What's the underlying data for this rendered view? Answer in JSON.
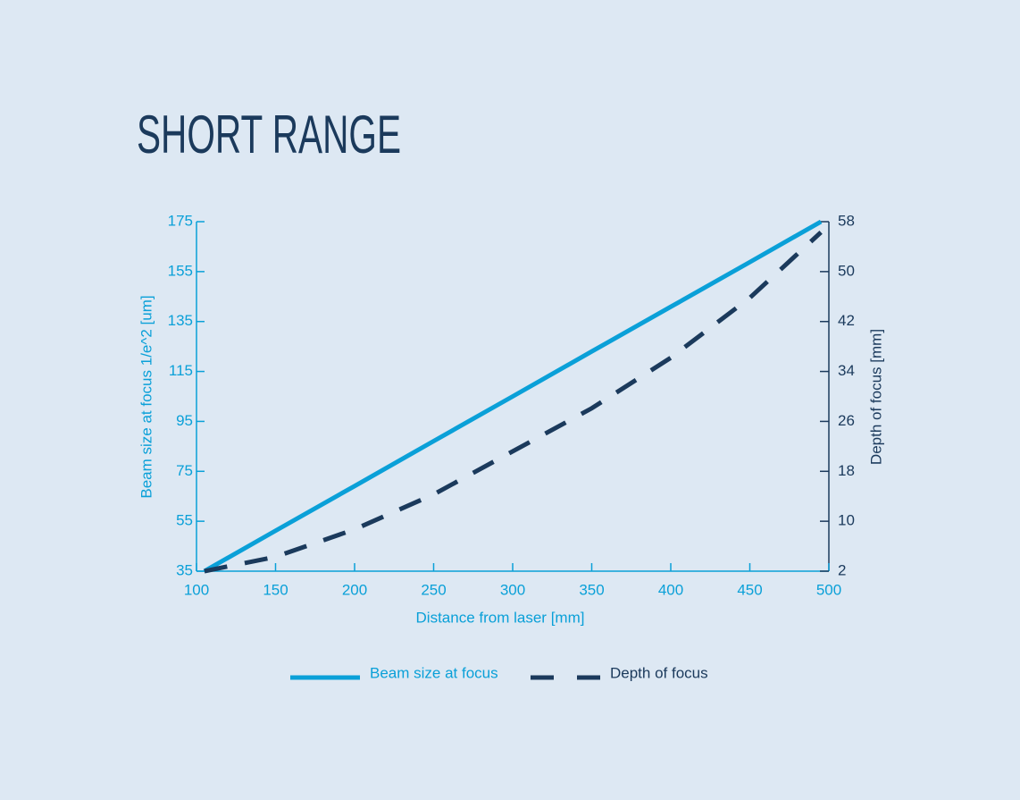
{
  "chart_data": {
    "type": "line",
    "title": "SHORT RANGE",
    "x_label": "Distance from laser [mm]",
    "y_label": "Beam size at focus 1/e^2 [um]",
    "y2_label": "Depth of focus [mm]",
    "x": [
      105,
      150,
      200,
      250,
      300,
      350,
      400,
      450,
      495
    ],
    "series": [
      {
        "name": "Beam size at focus",
        "color": "#0aa0d8",
        "values": [
          35,
          51.2,
          69.1,
          87.1,
          105,
          123,
          140.9,
          158.8,
          175
        ]
      },
      {
        "name": "Depth of focus",
        "color": "#1b3a5c",
        "axis": "y2",
        "dashed": true,
        "values": [
          2,
          4.3,
          8.7,
          14.3,
          21.2,
          28.1,
          36.2,
          45.8,
          56.3
        ]
      }
    ],
    "xlim": [
      100,
      500
    ],
    "xticks": [
      100,
      150,
      200,
      250,
      300,
      350,
      400,
      450,
      500
    ],
    "ylim": [
      35,
      175
    ],
    "yticks": [
      35,
      55,
      75,
      95,
      115,
      135,
      155,
      175
    ],
    "y2lim": [
      2,
      58
    ],
    "y2ticks": [
      2,
      10,
      18,
      26,
      34,
      42,
      50,
      58
    ]
  }
}
